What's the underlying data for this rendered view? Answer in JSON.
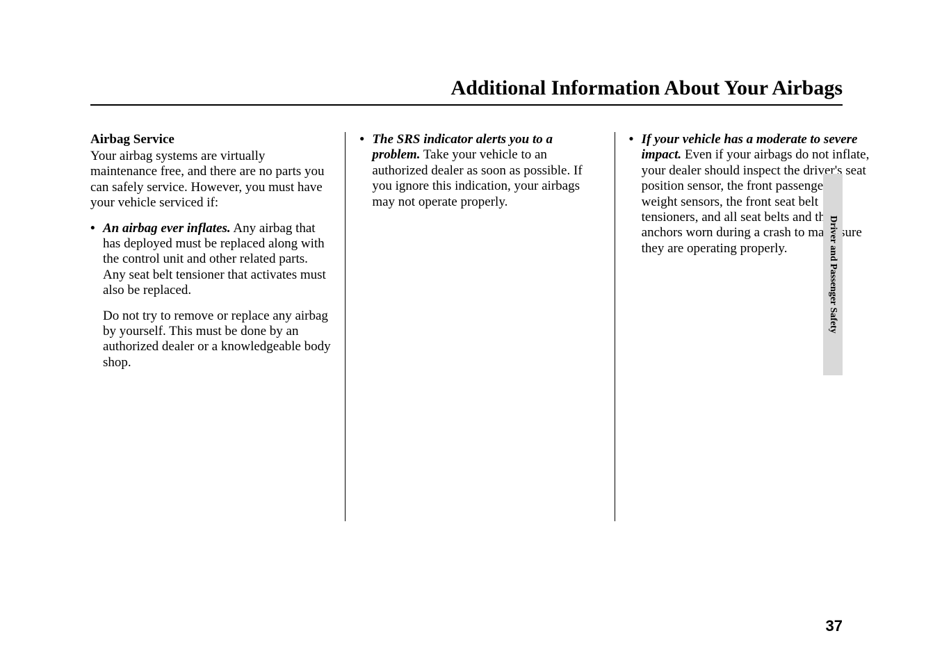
{
  "page": {
    "title": "Additional Information About Your Airbags",
    "title_fontsize": 30,
    "body_fontsize": 19,
    "subhead_fontsize": 19,
    "page_number": "37",
    "page_number_fontsize": 22,
    "text_color": "#000000",
    "background_color": "#ffffff",
    "rule_color": "#000000"
  },
  "side_tab": {
    "label": "Driver and Passenger Safety",
    "fontsize": 14,
    "bg_color": "#d9d9d9",
    "text_color": "#000000"
  },
  "col1": {
    "subhead": "Airbag Service",
    "intro": "Your airbag systems are virtually maintenance free, and there are no parts you can safely service. However, you must have your vehicle serviced if:",
    "bullet1_lead": "An airbag ever inflates.",
    "bullet1_rest": " Any airbag that has deployed must be replaced along with the control unit and other related parts. Any seat belt tensioner that activates must also be replaced.",
    "bullet1_para2": "Do not try to remove or replace any airbag by yourself. This must be done by an authorized dealer or a knowledgeable body shop."
  },
  "col2": {
    "bullet1_lead": "The SRS indicator alerts you to a problem.",
    "bullet1_rest": " Take your vehicle to an authorized dealer as soon as possible. If you ignore this indication, your airbags may not operate properly."
  },
  "col3": {
    "bullet1_lead": "If your vehicle has a moderate to severe impact.",
    "bullet1_rest": " Even if your airbags do not inflate, your dealer should inspect the driver's seat position sensor, the front passenger's weight sensors, the front seat belt tensioners, and all seat belts and their anchors worn during a crash to make sure they are operating properly."
  }
}
